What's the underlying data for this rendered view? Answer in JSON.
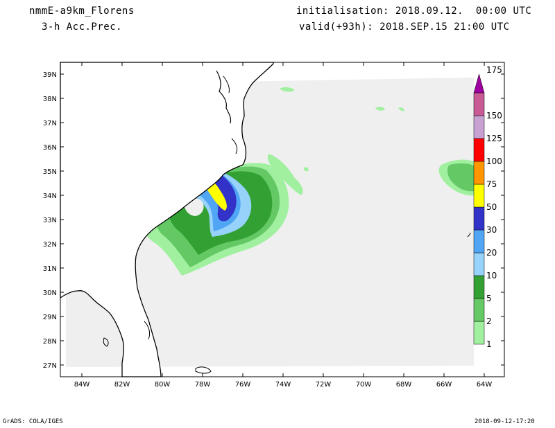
{
  "header": {
    "model": "nmmE-a9km_Florens",
    "field": "3-h Acc.Prec.",
    "init": "initialisation: 2018.09.12.  00:00 UTC",
    "valid": "valid(+93h): 2018.SEP.15 21:00 UTC"
  },
  "footer": {
    "software": "GrADS: COLA/IGES",
    "timestamp": "2018-09-12-17:20"
  },
  "map": {
    "lat_labels": [
      "39N",
      "38N",
      "37N",
      "36N",
      "35N",
      "34N",
      "33N",
      "32N",
      "31N",
      "30N",
      "29N",
      "28N",
      "27N"
    ],
    "lon_labels": [
      "84W",
      "82W",
      "80W",
      "78W",
      "76W",
      "74W",
      "72W",
      "70W",
      "68W",
      "66W",
      "64W"
    ],
    "land_color": "#ffffff",
    "domain_color": "#efefef",
    "coast_color": "#000000"
  },
  "colorbar": {
    "levels": [
      {
        "label": "1",
        "color": "#a0f0a0"
      },
      {
        "label": "2",
        "color": "#64c864"
      },
      {
        "label": "5",
        "color": "#32a032"
      },
      {
        "label": "10",
        "color": "#96d2fa"
      },
      {
        "label": "20",
        "color": "#50a5f5"
      },
      {
        "label": "30",
        "color": "#3232c8"
      },
      {
        "label": "50",
        "color": "#ffff00"
      },
      {
        "label": "75",
        "color": "#ff9600"
      },
      {
        "label": "100",
        "color": "#ff0000"
      },
      {
        "label": "125",
        "color": "#c8a0d2"
      },
      {
        "label": "150",
        "color": "#c85a96"
      },
      {
        "label": "175",
        "color": "#a000a0"
      }
    ],
    "top_cap_color": "#a000a0"
  }
}
